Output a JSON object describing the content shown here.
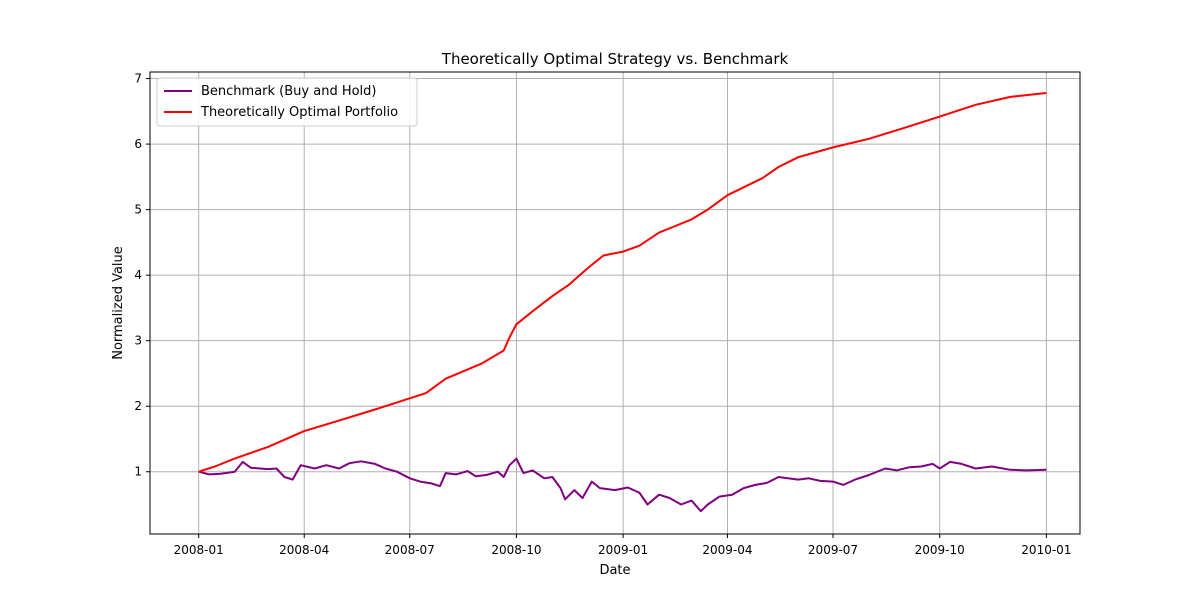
{
  "chart_data": {
    "type": "line",
    "title": "Theoretically Optimal Strategy vs. Benchmark",
    "xlabel": "Date",
    "ylabel": "Normalized Value",
    "xlim": [
      "2007-11-20",
      "2010-01-30"
    ],
    "ylim": [
      0.05,
      7.1
    ],
    "grid": true,
    "legend_position": "top-left",
    "x_ticks": [
      {
        "value": "2008-01-01",
        "label": "2008-01"
      },
      {
        "value": "2008-04-01",
        "label": "2008-04"
      },
      {
        "value": "2008-07-01",
        "label": "2008-07"
      },
      {
        "value": "2008-10-01",
        "label": "2008-10"
      },
      {
        "value": "2009-01-01",
        "label": "2009-01"
      },
      {
        "value": "2009-04-01",
        "label": "2009-04"
      },
      {
        "value": "2009-07-01",
        "label": "2009-07"
      },
      {
        "value": "2009-10-01",
        "label": "2009-10"
      },
      {
        "value": "2010-01-01",
        "label": "2010-01"
      }
    ],
    "y_ticks": [
      {
        "value": 1,
        "label": "1"
      },
      {
        "value": 2,
        "label": "2"
      },
      {
        "value": 3,
        "label": "3"
      },
      {
        "value": 4,
        "label": "4"
      },
      {
        "value": 5,
        "label": "5"
      },
      {
        "value": 6,
        "label": "6"
      },
      {
        "value": 7,
        "label": "7"
      }
    ],
    "series": [
      {
        "name": "Benchmark (Buy and Hold)",
        "color": "#800080",
        "points": [
          [
            "2008-01-01",
            1.0
          ],
          [
            "2008-01-10",
            0.96
          ],
          [
            "2008-01-20",
            0.97
          ],
          [
            "2008-02-01",
            1.0
          ],
          [
            "2008-02-08",
            1.15
          ],
          [
            "2008-02-15",
            1.06
          ],
          [
            "2008-03-01",
            1.04
          ],
          [
            "2008-03-08",
            1.05
          ],
          [
            "2008-03-15",
            0.92
          ],
          [
            "2008-03-22",
            0.88
          ],
          [
            "2008-03-29",
            1.1
          ],
          [
            "2008-04-10",
            1.05
          ],
          [
            "2008-04-20",
            1.1
          ],
          [
            "2008-05-01",
            1.05
          ],
          [
            "2008-05-10",
            1.13
          ],
          [
            "2008-05-20",
            1.16
          ],
          [
            "2008-06-01",
            1.12
          ],
          [
            "2008-06-10",
            1.05
          ],
          [
            "2008-06-20",
            1.0
          ],
          [
            "2008-07-01",
            0.9
          ],
          [
            "2008-07-10",
            0.85
          ],
          [
            "2008-07-20",
            0.82
          ],
          [
            "2008-07-27",
            0.78
          ],
          [
            "2008-08-01",
            0.98
          ],
          [
            "2008-08-10",
            0.96
          ],
          [
            "2008-08-20",
            1.01
          ],
          [
            "2008-08-27",
            0.93
          ],
          [
            "2008-09-05",
            0.95
          ],
          [
            "2008-09-15",
            1.0
          ],
          [
            "2008-09-20",
            0.92
          ],
          [
            "2008-09-25",
            1.1
          ],
          [
            "2008-10-01",
            1.2
          ],
          [
            "2008-10-07",
            0.98
          ],
          [
            "2008-10-15",
            1.02
          ],
          [
            "2008-10-25",
            0.9
          ],
          [
            "2008-11-01",
            0.92
          ],
          [
            "2008-11-08",
            0.75
          ],
          [
            "2008-11-12",
            0.58
          ],
          [
            "2008-11-20",
            0.72
          ],
          [
            "2008-11-27",
            0.6
          ],
          [
            "2008-12-05",
            0.85
          ],
          [
            "2008-12-12",
            0.75
          ],
          [
            "2008-12-25",
            0.72
          ],
          [
            "2009-01-05",
            0.76
          ],
          [
            "2009-01-15",
            0.68
          ],
          [
            "2009-01-22",
            0.5
          ],
          [
            "2009-02-01",
            0.65
          ],
          [
            "2009-02-10",
            0.6
          ],
          [
            "2009-02-20",
            0.5
          ],
          [
            "2009-03-01",
            0.56
          ],
          [
            "2009-03-09",
            0.4
          ],
          [
            "2009-03-15",
            0.5
          ],
          [
            "2009-03-25",
            0.62
          ],
          [
            "2009-04-05",
            0.65
          ],
          [
            "2009-04-15",
            0.75
          ],
          [
            "2009-04-25",
            0.8
          ],
          [
            "2009-05-05",
            0.83
          ],
          [
            "2009-05-15",
            0.92
          ],
          [
            "2009-06-01",
            0.88
          ],
          [
            "2009-06-10",
            0.9
          ],
          [
            "2009-06-20",
            0.86
          ],
          [
            "2009-07-01",
            0.85
          ],
          [
            "2009-07-10",
            0.8
          ],
          [
            "2009-07-20",
            0.88
          ],
          [
            "2009-08-01",
            0.95
          ],
          [
            "2009-08-15",
            1.05
          ],
          [
            "2009-08-25",
            1.02
          ],
          [
            "2009-09-05",
            1.07
          ],
          [
            "2009-09-15",
            1.08
          ],
          [
            "2009-09-25",
            1.12
          ],
          [
            "2009-10-01",
            1.05
          ],
          [
            "2009-10-10",
            1.15
          ],
          [
            "2009-10-20",
            1.12
          ],
          [
            "2009-11-01",
            1.05
          ],
          [
            "2009-11-15",
            1.08
          ],
          [
            "2009-12-01",
            1.03
          ],
          [
            "2009-12-15",
            1.02
          ],
          [
            "2010-01-01",
            1.03
          ]
        ]
      },
      {
        "name": "Theoretically Optimal Portfolio",
        "color": "#ff0000",
        "points": [
          [
            "2008-01-01",
            1.0
          ],
          [
            "2008-01-15",
            1.08
          ],
          [
            "2008-02-01",
            1.2
          ],
          [
            "2008-03-01",
            1.38
          ],
          [
            "2008-04-01",
            1.62
          ],
          [
            "2008-05-01",
            1.78
          ],
          [
            "2008-06-01",
            1.95
          ],
          [
            "2008-07-01",
            2.12
          ],
          [
            "2008-07-15",
            2.2
          ],
          [
            "2008-08-01",
            2.42
          ],
          [
            "2008-09-01",
            2.65
          ],
          [
            "2008-09-20",
            2.85
          ],
          [
            "2008-09-25",
            3.05
          ],
          [
            "2008-10-01",
            3.25
          ],
          [
            "2008-10-15",
            3.45
          ],
          [
            "2008-11-01",
            3.68
          ],
          [
            "2008-11-15",
            3.85
          ],
          [
            "2008-12-01",
            4.1
          ],
          [
            "2008-12-15",
            4.3
          ],
          [
            "2009-01-01",
            4.36
          ],
          [
            "2009-01-15",
            4.45
          ],
          [
            "2009-02-01",
            4.65
          ],
          [
            "2009-02-15",
            4.75
          ],
          [
            "2009-03-01",
            4.85
          ],
          [
            "2009-03-15",
            5.0
          ],
          [
            "2009-04-01",
            5.22
          ],
          [
            "2009-05-01",
            5.48
          ],
          [
            "2009-05-15",
            5.65
          ],
          [
            "2009-06-01",
            5.8
          ],
          [
            "2009-07-01",
            5.95
          ],
          [
            "2009-08-01",
            6.08
          ],
          [
            "2009-09-01",
            6.25
          ],
          [
            "2009-10-01",
            6.42
          ],
          [
            "2009-11-01",
            6.6
          ],
          [
            "2009-12-01",
            6.72
          ],
          [
            "2010-01-01",
            6.78
          ]
        ]
      }
    ]
  }
}
